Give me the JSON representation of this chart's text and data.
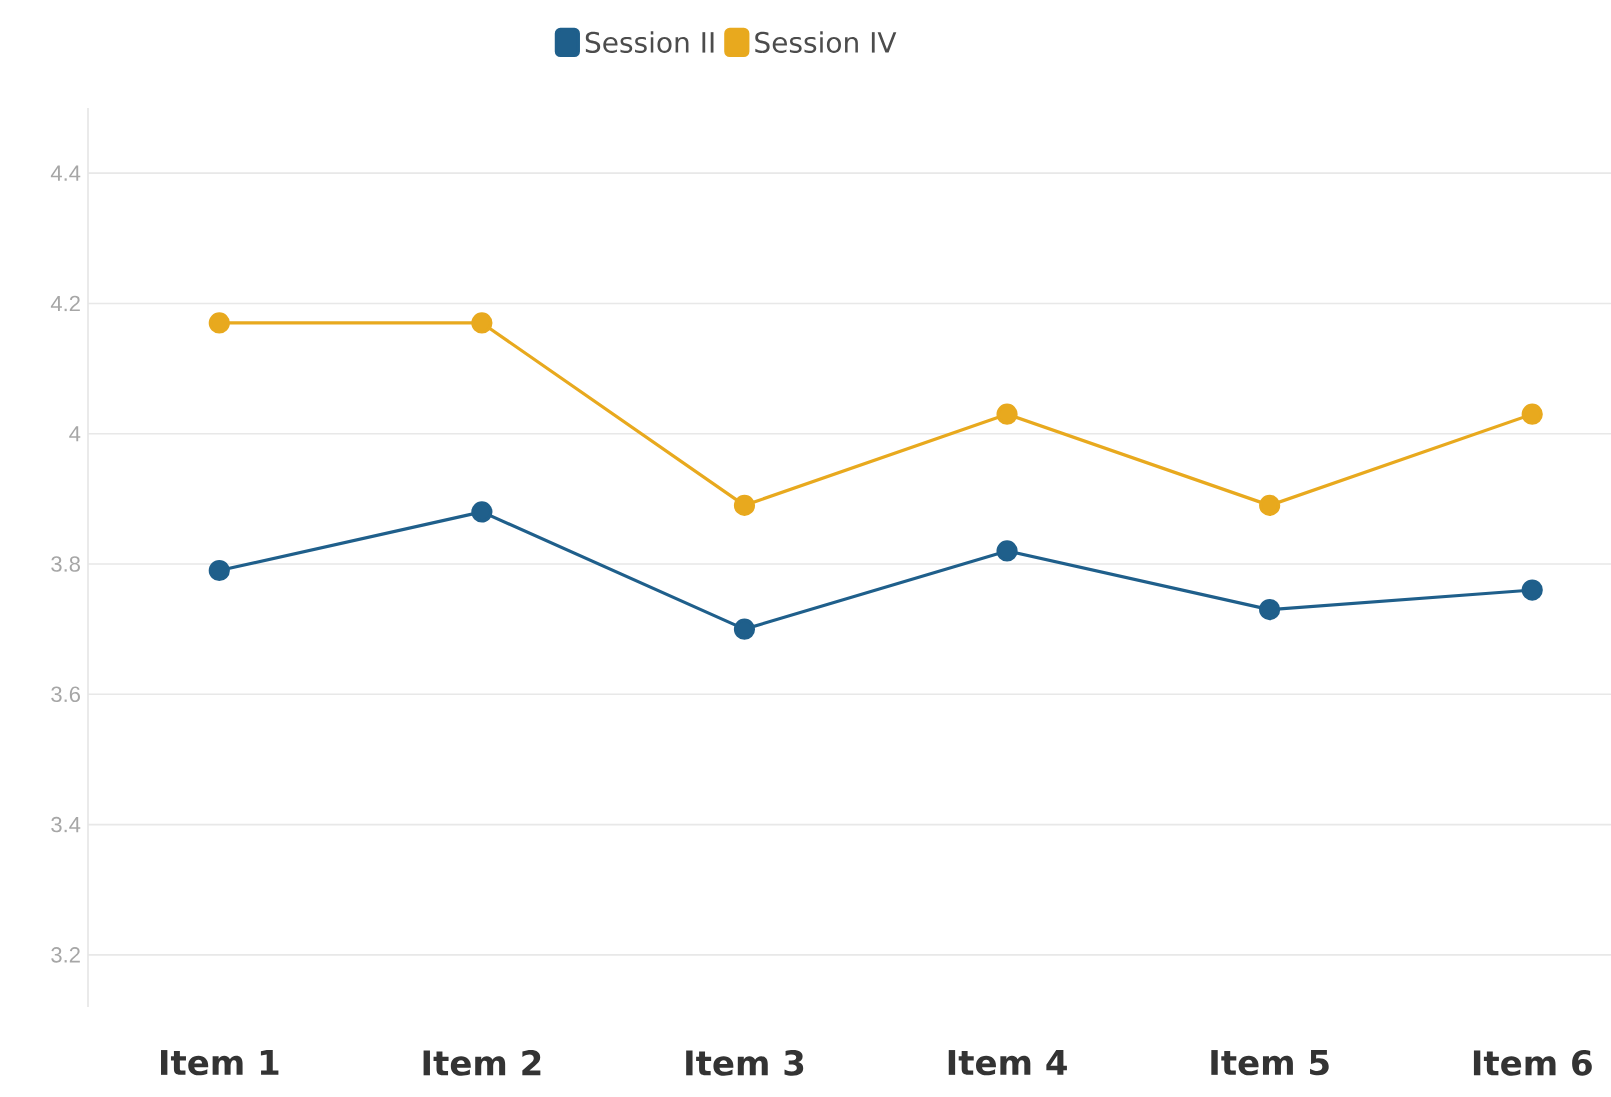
{
  "chart_data": {
    "type": "line",
    "categories": [
      "Item 1",
      "Item 2",
      "Item 3",
      "Item 4",
      "Item 5",
      "Item 6"
    ],
    "series": [
      {
        "name": "Session II",
        "color": "#1f5f8b",
        "values": [
          3.79,
          3.88,
          3.7,
          3.82,
          3.73,
          3.76
        ]
      },
      {
        "name": "Session IV",
        "color": "#e8a91e",
        "values": [
          4.17,
          4.17,
          3.89,
          4.03,
          3.89,
          4.03
        ]
      }
    ],
    "ylim": [
      3.12,
      4.5
    ],
    "yticks": [
      3.2,
      3.4,
      3.6,
      3.8,
      4,
      4.2,
      4.4
    ],
    "grid": "y",
    "legend": "top",
    "marker": "circle",
    "line_style": "solid"
  }
}
